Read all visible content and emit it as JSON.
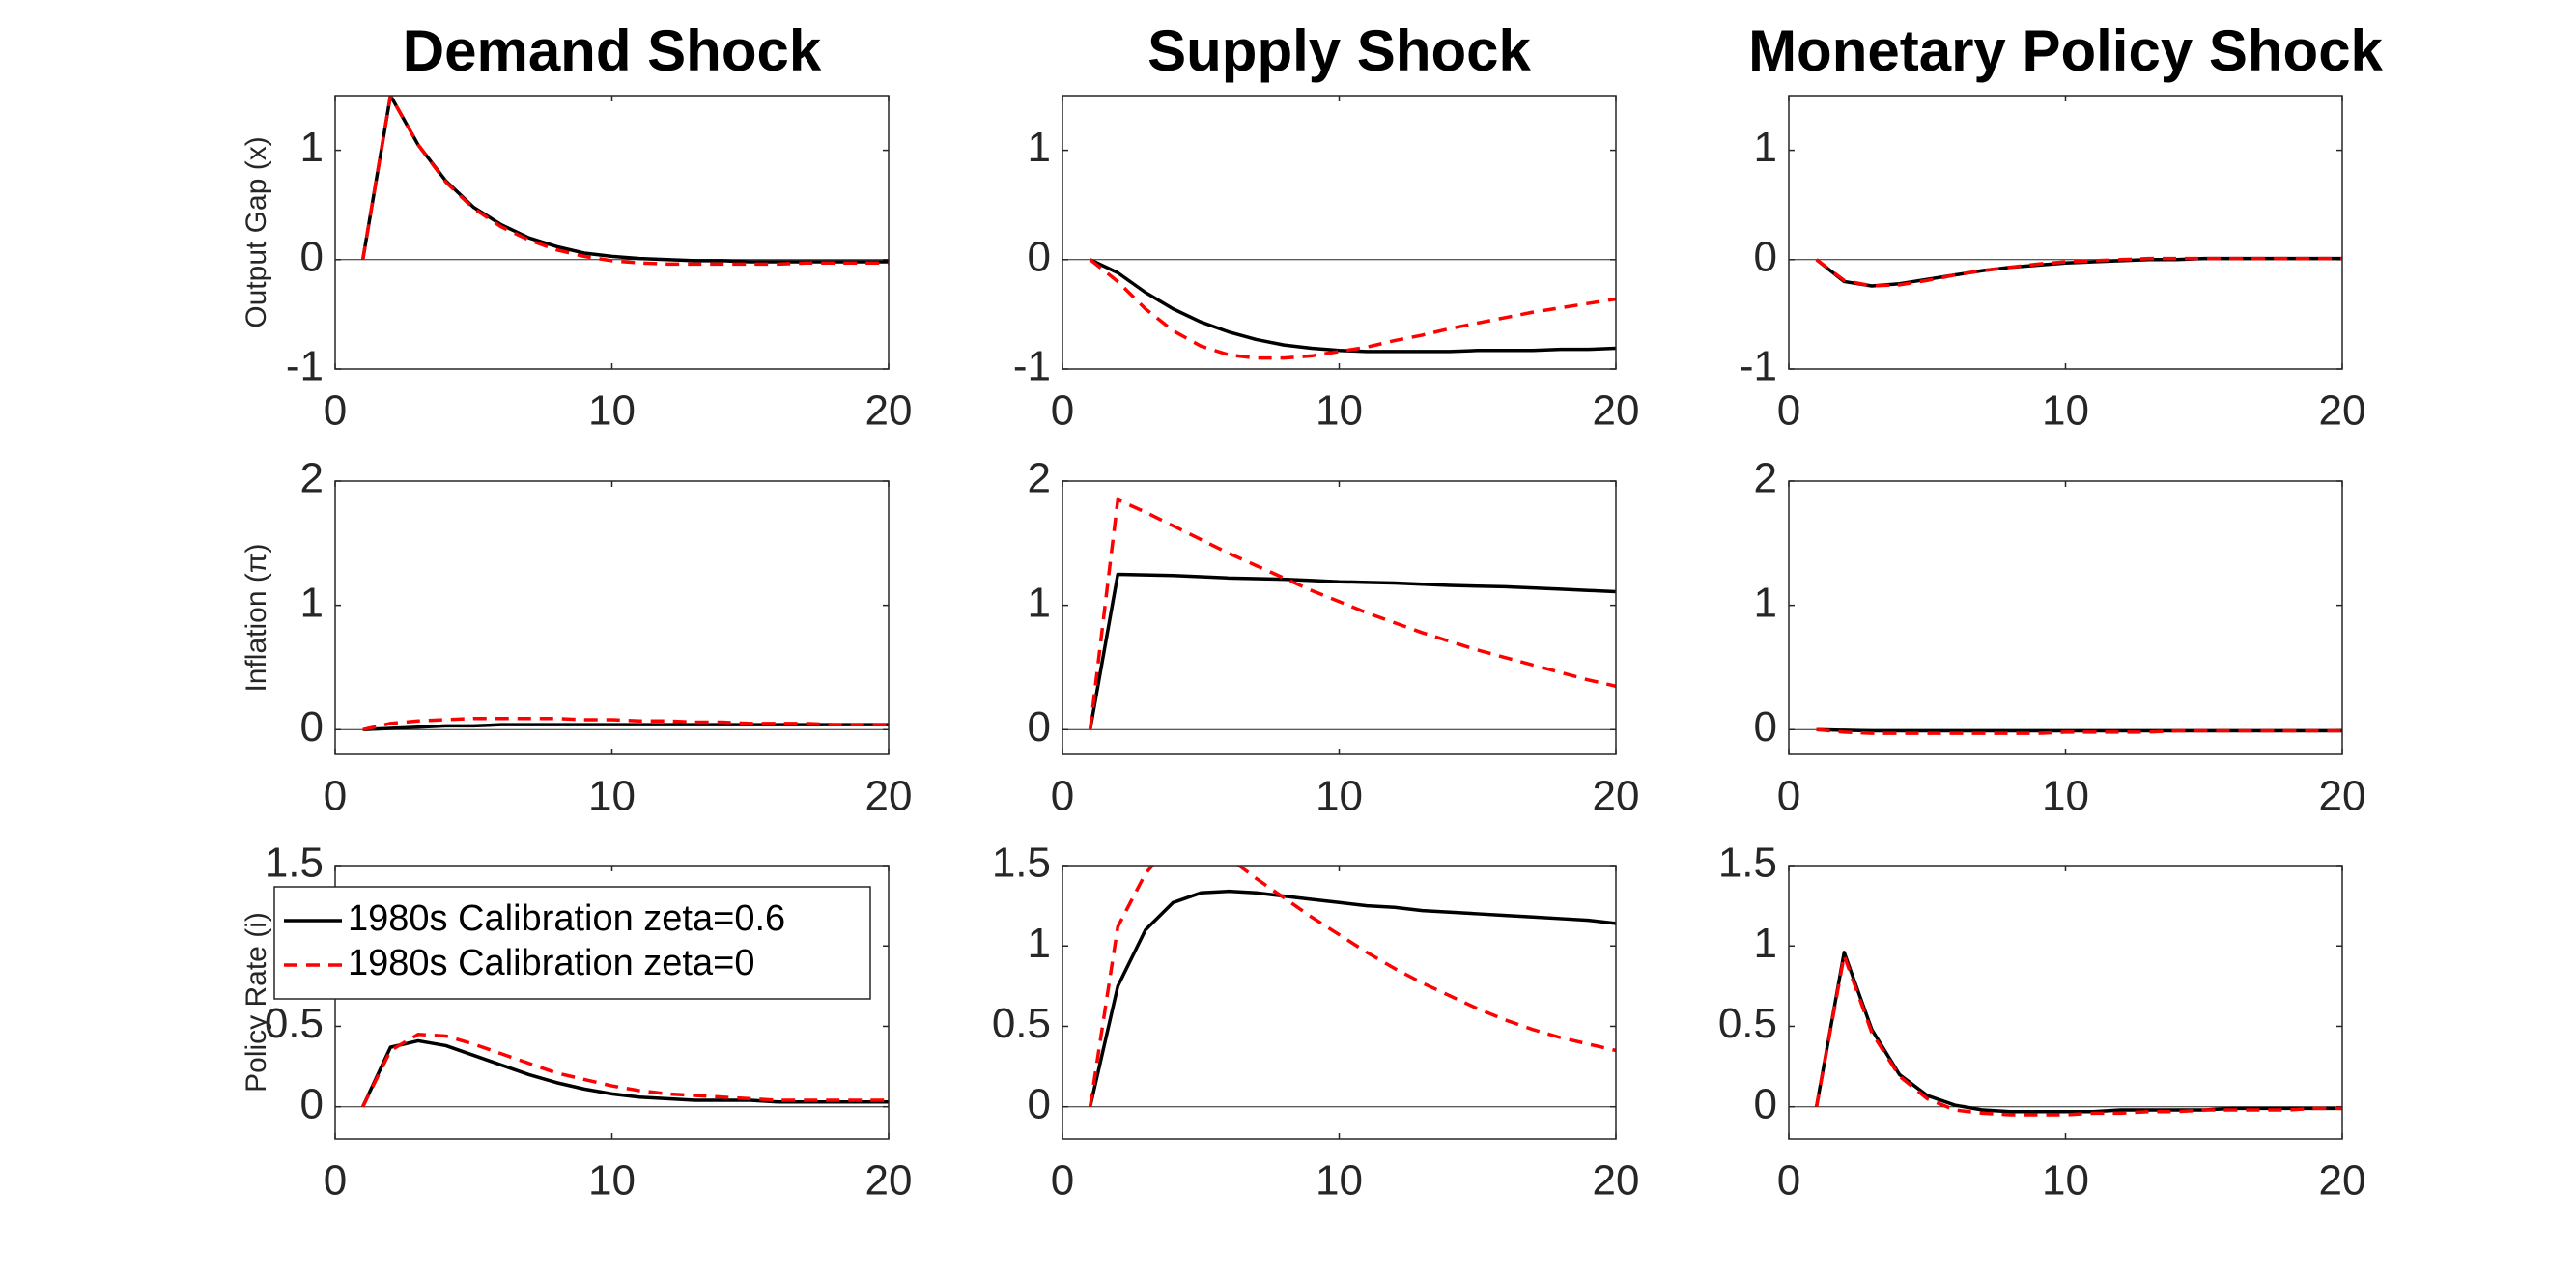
{
  "chart_data": [
    {
      "type": "line",
      "title": "Demand Shock",
      "ylabel": "Output Gap (x)",
      "x": [
        1,
        2,
        3,
        4,
        5,
        6,
        7,
        8,
        9,
        10,
        11,
        12,
        13,
        14,
        15,
        16,
        17,
        18,
        19,
        20
      ],
      "xlim": [
        0,
        20
      ],
      "xticks": [
        0,
        10,
        20
      ],
      "ylim": [
        -1,
        1.5
      ],
      "yticks": [
        -1,
        0,
        1
      ],
      "zero_line": true,
      "series": [
        {
          "color": "#000000",
          "linestyle": "solid",
          "values": [
            0,
            1.5,
            1.05,
            0.72,
            0.48,
            0.32,
            0.2,
            0.12,
            0.06,
            0.03,
            0.01,
            0,
            -0.01,
            -0.01,
            -0.02,
            -0.02,
            -0.02,
            -0.02,
            -0.02,
            -0.02
          ]
        },
        {
          "color": "#ff0000",
          "linestyle": "dashed",
          "values": [
            0,
            1.5,
            1.05,
            0.71,
            0.47,
            0.3,
            0.18,
            0.09,
            0.03,
            -0.01,
            -0.03,
            -0.04,
            -0.04,
            -0.04,
            -0.04,
            -0.04,
            -0.03,
            -0.03,
            -0.03,
            -0.03
          ]
        }
      ]
    },
    {
      "type": "line",
      "title": "Supply Shock",
      "x": [
        1,
        2,
        3,
        4,
        5,
        6,
        7,
        8,
        9,
        10,
        11,
        12,
        13,
        14,
        15,
        16,
        17,
        18,
        19,
        20
      ],
      "xlim": [
        0,
        20
      ],
      "xticks": [
        0,
        10,
        20
      ],
      "ylim": [
        -1,
        1.5
      ],
      "yticks": [
        -1,
        0,
        1
      ],
      "zero_line": true,
      "series": [
        {
          "color": "#000000",
          "linestyle": "solid",
          "values": [
            0,
            -0.12,
            -0.3,
            -0.45,
            -0.57,
            -0.66,
            -0.73,
            -0.78,
            -0.81,
            -0.83,
            -0.84,
            -0.84,
            -0.84,
            -0.84,
            -0.83,
            -0.83,
            -0.83,
            -0.82,
            -0.82,
            -0.81
          ]
        },
        {
          "color": "#ff0000",
          "linestyle": "dashed",
          "values": [
            0,
            -0.2,
            -0.45,
            -0.65,
            -0.79,
            -0.87,
            -0.9,
            -0.9,
            -0.88,
            -0.84,
            -0.8,
            -0.74,
            -0.69,
            -0.63,
            -0.58,
            -0.53,
            -0.48,
            -0.44,
            -0.4,
            -0.36
          ]
        }
      ]
    },
    {
      "type": "line",
      "title": "Monetary Policy Shock",
      "x": [
        1,
        2,
        3,
        4,
        5,
        6,
        7,
        8,
        9,
        10,
        11,
        12,
        13,
        14,
        15,
        16,
        17,
        18,
        19,
        20
      ],
      "xlim": [
        0,
        20
      ],
      "xticks": [
        0,
        10,
        20
      ],
      "ylim": [
        -1,
        1.5
      ],
      "yticks": [
        -1,
        0,
        1
      ],
      "zero_line": true,
      "series": [
        {
          "color": "#000000",
          "linestyle": "solid",
          "values": [
            0,
            -0.2,
            -0.24,
            -0.22,
            -0.18,
            -0.14,
            -0.1,
            -0.07,
            -0.05,
            -0.03,
            -0.02,
            -0.01,
            0,
            0,
            0.01,
            0.01,
            0.01,
            0.01,
            0.01,
            0.01
          ]
        },
        {
          "color": "#ff0000",
          "linestyle": "dashed",
          "values": [
            0,
            -0.19,
            -0.24,
            -0.23,
            -0.19,
            -0.14,
            -0.1,
            -0.07,
            -0.04,
            -0.02,
            -0.01,
            0,
            0.01,
            0.01,
            0.01,
            0.01,
            0.01,
            0.01,
            0.01,
            0.01
          ]
        }
      ]
    },
    {
      "type": "line",
      "ylabel": "Inflation (π)",
      "x": [
        1,
        2,
        3,
        4,
        5,
        6,
        7,
        8,
        9,
        10,
        11,
        12,
        13,
        14,
        15,
        16,
        17,
        18,
        19,
        20
      ],
      "xlim": [
        0,
        20
      ],
      "xticks": [
        0,
        10,
        20
      ],
      "ylim": [
        -0.2,
        2
      ],
      "yticks": [
        0,
        1,
        2
      ],
      "zero_line": true,
      "series": [
        {
          "color": "#000000",
          "linestyle": "solid",
          "values": [
            0,
            0.01,
            0.02,
            0.03,
            0.03,
            0.04,
            0.04,
            0.04,
            0.04,
            0.04,
            0.04,
            0.04,
            0.04,
            0.04,
            0.04,
            0.04,
            0.04,
            0.04,
            0.04,
            0.04
          ]
        },
        {
          "color": "#ff0000",
          "linestyle": "dashed",
          "values": [
            0,
            0.05,
            0.07,
            0.08,
            0.09,
            0.09,
            0.09,
            0.09,
            0.08,
            0.08,
            0.07,
            0.07,
            0.06,
            0.06,
            0.05,
            0.05,
            0.05,
            0.04,
            0.04,
            0.04
          ]
        }
      ]
    },
    {
      "type": "line",
      "x": [
        1,
        2,
        3,
        4,
        5,
        6,
        7,
        8,
        9,
        10,
        11,
        12,
        13,
        14,
        15,
        16,
        17,
        18,
        19,
        20
      ],
      "xlim": [
        0,
        20
      ],
      "xticks": [
        0,
        10,
        20
      ],
      "ylim": [
        -0.2,
        2
      ],
      "yticks": [
        0,
        1,
        2
      ],
      "zero_line": true,
      "series": [
        {
          "color": "#000000",
          "linestyle": "solid",
          "values": [
            0,
            1.25,
            1.245,
            1.24,
            1.23,
            1.22,
            1.215,
            1.21,
            1.2,
            1.19,
            1.185,
            1.18,
            1.17,
            1.16,
            1.155,
            1.15,
            1.14,
            1.13,
            1.12,
            1.11
          ]
        },
        {
          "color": "#ff0000",
          "linestyle": "dashed",
          "values": [
            0,
            1.85,
            1.75,
            1.64,
            1.53,
            1.42,
            1.32,
            1.22,
            1.12,
            1.03,
            0.94,
            0.86,
            0.78,
            0.71,
            0.64,
            0.58,
            0.52,
            0.46,
            0.4,
            0.35
          ]
        }
      ]
    },
    {
      "type": "line",
      "x": [
        1,
        2,
        3,
        4,
        5,
        6,
        7,
        8,
        9,
        10,
        11,
        12,
        13,
        14,
        15,
        16,
        17,
        18,
        19,
        20
      ],
      "xlim": [
        0,
        20
      ],
      "xticks": [
        0,
        10,
        20
      ],
      "ylim": [
        -0.2,
        2
      ],
      "yticks": [
        0,
        1,
        2
      ],
      "zero_line": true,
      "series": [
        {
          "color": "#000000",
          "linestyle": "solid",
          "values": [
            0,
            -0.005,
            -0.01,
            -0.01,
            -0.01,
            -0.01,
            -0.01,
            -0.01,
            -0.01,
            -0.01,
            -0.01,
            -0.01,
            -0.01,
            -0.01,
            -0.01,
            -0.01,
            -0.01,
            -0.01,
            -0.01,
            -0.01
          ]
        },
        {
          "color": "#ff0000",
          "linestyle": "dashed",
          "values": [
            0,
            -0.02,
            -0.03,
            -0.03,
            -0.03,
            -0.03,
            -0.03,
            -0.03,
            -0.03,
            -0.02,
            -0.02,
            -0.02,
            -0.02,
            -0.01,
            -0.01,
            -0.01,
            -0.01,
            -0.01,
            -0.01,
            -0.01
          ]
        }
      ]
    },
    {
      "type": "line",
      "ylabel": "Policy Rate (i)",
      "legend": "northwest",
      "x": [
        1,
        2,
        3,
        4,
        5,
        6,
        7,
        8,
        9,
        10,
        11,
        12,
        13,
        14,
        15,
        16,
        17,
        18,
        19,
        20
      ],
      "xlim": [
        0,
        20
      ],
      "xticks": [
        0,
        10,
        20
      ],
      "ylim": [
        -0.2,
        1.5
      ],
      "yticks": [
        0,
        0.5,
        1,
        1.5
      ],
      "zero_line": true,
      "series": [
        {
          "name": "1980s Calibration zeta=0.6",
          "color": "#000000",
          "linestyle": "solid",
          "values": [
            0,
            0.37,
            0.41,
            0.38,
            0.32,
            0.26,
            0.2,
            0.15,
            0.11,
            0.08,
            0.06,
            0.05,
            0.04,
            0.04,
            0.04,
            0.03,
            0.03,
            0.03,
            0.03,
            0.03
          ]
        },
        {
          "name": "1980s Calibration zeta=0",
          "color": "#ff0000",
          "linestyle": "dashed",
          "values": [
            0,
            0.35,
            0.45,
            0.44,
            0.39,
            0.33,
            0.27,
            0.21,
            0.17,
            0.13,
            0.1,
            0.08,
            0.07,
            0.06,
            0.05,
            0.04,
            0.04,
            0.04,
            0.04,
            0.04
          ]
        }
      ]
    },
    {
      "type": "line",
      "x": [
        1,
        2,
        3,
        4,
        5,
        6,
        7,
        8,
        9,
        10,
        11,
        12,
        13,
        14,
        15,
        16,
        17,
        18,
        19,
        20
      ],
      "xlim": [
        0,
        20
      ],
      "xticks": [
        0,
        10,
        20
      ],
      "ylim": [
        -0.2,
        1.5
      ],
      "yticks": [
        0,
        0.5,
        1,
        1.5
      ],
      "zero_line": true,
      "series": [
        {
          "color": "#000000",
          "linestyle": "solid",
          "values": [
            0,
            0.75,
            1.1,
            1.27,
            1.33,
            1.34,
            1.33,
            1.31,
            1.29,
            1.27,
            1.25,
            1.24,
            1.22,
            1.21,
            1.2,
            1.19,
            1.18,
            1.17,
            1.16,
            1.14
          ]
        },
        {
          "color": "#ff0000",
          "linestyle": "dashed",
          "values": [
            0,
            1.12,
            1.45,
            1.65,
            1.65,
            1.55,
            1.42,
            1.3,
            1.18,
            1.07,
            0.96,
            0.86,
            0.77,
            0.69,
            0.61,
            0.54,
            0.48,
            0.43,
            0.39,
            0.35
          ]
        }
      ]
    },
    {
      "type": "line",
      "x": [
        1,
        2,
        3,
        4,
        5,
        6,
        7,
        8,
        9,
        10,
        11,
        12,
        13,
        14,
        15,
        16,
        17,
        18,
        19,
        20
      ],
      "xlim": [
        0,
        20
      ],
      "xticks": [
        0,
        10,
        20
      ],
      "ylim": [
        -0.2,
        1.5
      ],
      "yticks": [
        0,
        0.5,
        1,
        1.5
      ],
      "zero_line": true,
      "series": [
        {
          "color": "#000000",
          "linestyle": "solid",
          "values": [
            0,
            0.96,
            0.48,
            0.2,
            0.07,
            0.01,
            -0.02,
            -0.03,
            -0.03,
            -0.03,
            -0.03,
            -0.02,
            -0.02,
            -0.02,
            -0.02,
            -0.01,
            -0.01,
            -0.01,
            -0.01,
            -0.01
          ]
        },
        {
          "color": "#ff0000",
          "linestyle": "dashed",
          "values": [
            0,
            0.94,
            0.46,
            0.19,
            0.05,
            -0.02,
            -0.04,
            -0.05,
            -0.05,
            -0.05,
            -0.04,
            -0.04,
            -0.03,
            -0.03,
            -0.02,
            -0.02,
            -0.02,
            -0.02,
            -0.01,
            -0.01
          ]
        }
      ]
    }
  ]
}
